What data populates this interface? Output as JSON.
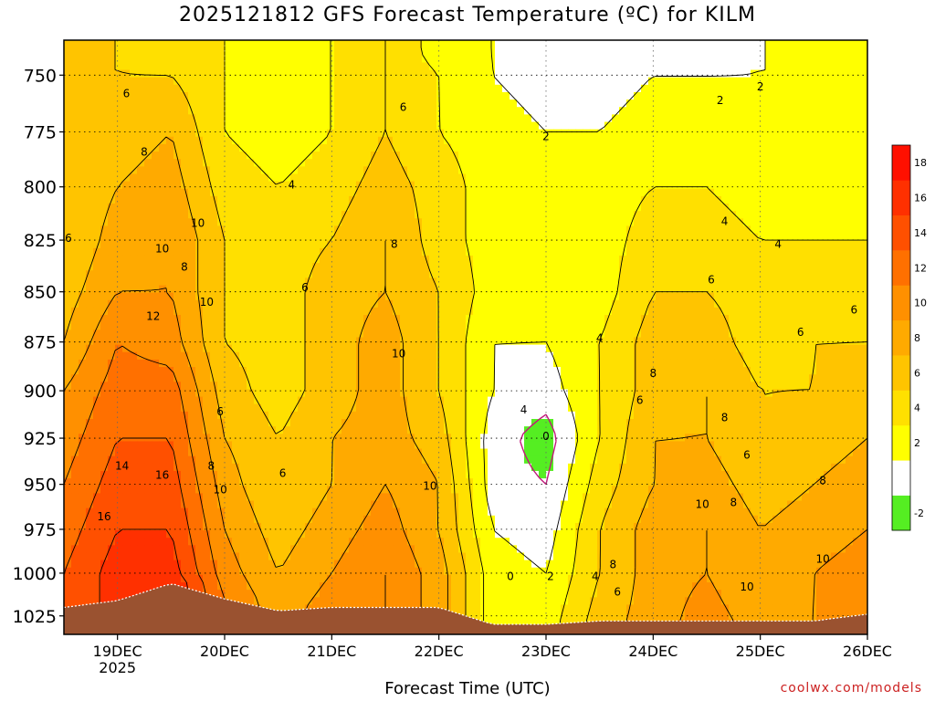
{
  "chart_data": {
    "type": "heatmap",
    "title": "2025121812 GFS Forecast Temperature (ºC) for KILM",
    "xlabel": "Forecast Time (UTC)",
    "credit": "coolwx.com/models",
    "y_axis": {
      "label": "",
      "scale": "log",
      "range": [
        735,
        1036
      ],
      "ticks": [
        750,
        775,
        800,
        825,
        850,
        875,
        900,
        925,
        950,
        975,
        1000,
        1025
      ]
    },
    "x_axis": {
      "range": [
        "2025-12-18T12:00Z",
        "2025-12-26T00:00Z"
      ],
      "ticks": [
        {
          "label": "19DEC",
          "sub": "2025",
          "time": "2025-12-19T00:00Z"
        },
        {
          "label": "20DEC",
          "sub": "",
          "time": "2025-12-20T00:00Z"
        },
        {
          "label": "21DEC",
          "sub": "",
          "time": "2025-12-21T00:00Z"
        },
        {
          "label": "22DEC",
          "sub": "",
          "time": "2025-12-22T00:00Z"
        },
        {
          "label": "23DEC",
          "sub": "",
          "time": "2025-12-23T00:00Z"
        },
        {
          "label": "24DEC",
          "sub": "",
          "time": "2025-12-24T00:00Z"
        },
        {
          "label": "25DEC",
          "sub": "",
          "time": "2025-12-25T00:00Z"
        },
        {
          "label": "26DEC",
          "sub": "",
          "time": "2025-12-26T00:00Z"
        }
      ]
    },
    "grid": true,
    "colorbar": {
      "placement": "right",
      "levels": [
        -2,
        0,
        2,
        4,
        6,
        8,
        10,
        12,
        14,
        16,
        18,
        20
      ],
      "tick_labels": [
        "-2",
        "2",
        "4",
        "6",
        "8",
        "10",
        "12",
        "14",
        "16",
        "18"
      ],
      "colors": [
        "#55ee22",
        "#ffffff",
        "#ffff00",
        "#ffe000",
        "#ffc400",
        "#ffaa00",
        "#ff9000",
        "#ff7000",
        "#ff5000",
        "#ff3000",
        "#ff1000"
      ]
    },
    "terrain_color": "#9a5230",
    "temperature_profiles": [
      {
        "time": "2025-12-18T12:00Z",
        "pressure": [
          1020,
          1000,
          975,
          950,
          925,
          900,
          875,
          850,
          825,
          800,
          775,
          750,
          740
        ],
        "temp": [
          14,
          14,
          13,
          12,
          11,
          10,
          8,
          7,
          6,
          6,
          6,
          6,
          6
        ]
      },
      {
        "time": "2025-12-19T00:00Z",
        "pressure": [
          1016,
          1000,
          975,
          950,
          925,
          900,
          875,
          850,
          825,
          800,
          775,
          750,
          740
        ],
        "temp": [
          17,
          17,
          16,
          15,
          14,
          13,
          12,
          10,
          9,
          8,
          7,
          6,
          6
        ]
      },
      {
        "time": "2025-12-19T12:00Z",
        "pressure": [
          1006,
          1000,
          975,
          950,
          925,
          900,
          875,
          850,
          825,
          800,
          775,
          750,
          740
        ],
        "temp": [
          18,
          17,
          16,
          15,
          14,
          13,
          11,
          10,
          10,
          9,
          8,
          6,
          5
        ]
      },
      {
        "time": "2025-12-20T00:00Z",
        "pressure": [
          1015,
          1000,
          975,
          950,
          925,
          900,
          875,
          850,
          825,
          800,
          775,
          750,
          740
        ],
        "temp": [
          12,
          11,
          10,
          9,
          8,
          7,
          6,
          6,
          6,
          5,
          4,
          4,
          4
        ]
      },
      {
        "time": "2025-12-20T12:00Z",
        "pressure": [
          1022,
          1000,
          975,
          950,
          925,
          900,
          875,
          850,
          825,
          800,
          775,
          750,
          740
        ],
        "temp": [
          9,
          8,
          7,
          6,
          6,
          5,
          5,
          5,
          5,
          4,
          3,
          3,
          3
        ]
      },
      {
        "time": "2025-12-21T00:00Z",
        "pressure": [
          1020,
          1000,
          975,
          950,
          925,
          900,
          875,
          850,
          825,
          800,
          775,
          750,
          740
        ],
        "temp": [
          11,
          10,
          9,
          8,
          8,
          7,
          7,
          7,
          6,
          5,
          4,
          4,
          4
        ]
      },
      {
        "time": "2025-12-21T12:00Z",
        "pressure": [
          1020,
          1000,
          975,
          950,
          925,
          900,
          875,
          850,
          825,
          800,
          775,
          750,
          740
        ],
        "temp": [
          12,
          12,
          11,
          10,
          9,
          9,
          9,
          8,
          8,
          7,
          6,
          6,
          6
        ]
      },
      {
        "time": "2025-12-22T00:00Z",
        "pressure": [
          1020,
          1000,
          975,
          950,
          925,
          900,
          875,
          850,
          825,
          800,
          775,
          750,
          740
        ],
        "temp": [
          9,
          9,
          8,
          8,
          7,
          6,
          6,
          6,
          5,
          5,
          4,
          4,
          3
        ]
      },
      {
        "time": "2025-12-22T12:00Z",
        "pressure": [
          1030,
          1000,
          975,
          950,
          925,
          900,
          875,
          850,
          825,
          800,
          775,
          750,
          740
        ],
        "temp": [
          3,
          3,
          2,
          1,
          1,
          2,
          2,
          3,
          3,
          3,
          3,
          2,
          2
        ]
      },
      {
        "time": "2025-12-23T00:00Z",
        "pressure": [
          1030,
          1000,
          975,
          950,
          925,
          900,
          875,
          850,
          825,
          800,
          775,
          750,
          740
        ],
        "temp": [
          3,
          2,
          1,
          0,
          -1,
          1,
          2,
          3,
          3,
          3,
          2,
          1,
          0
        ]
      },
      {
        "time": "2025-12-23T12:00Z",
        "pressure": [
          1028,
          1000,
          975,
          950,
          925,
          900,
          875,
          850,
          825,
          800,
          775,
          750,
          740
        ],
        "temp": [
          7,
          6,
          6,
          5,
          4,
          4,
          4,
          3,
          3,
          3,
          2,
          1,
          1
        ]
      },
      {
        "time": "2025-12-24T00:00Z",
        "pressure": [
          1028,
          1000,
          975,
          950,
          925,
          900,
          875,
          850,
          825,
          800,
          775,
          750,
          740
        ],
        "temp": [
          9,
          9,
          9,
          8,
          8,
          7,
          7,
          6,
          5,
          4,
          3,
          2,
          1
        ]
      },
      {
        "time": "2025-12-24T12:00Z",
        "pressure": [
          1028,
          1000,
          975,
          950,
          925,
          900,
          875,
          850,
          825,
          800,
          775,
          750,
          740
        ],
        "temp": [
          11,
          10,
          10,
          9,
          8,
          8,
          7,
          6,
          5,
          4,
          3,
          2,
          1
        ]
      },
      {
        "time": "2025-12-25T00:00Z",
        "pressure": [
          1028,
          1000,
          975,
          950,
          925,
          900,
          875,
          850,
          825,
          800,
          775,
          750,
          740
        ],
        "temp": [
          9,
          8,
          8,
          7,
          6,
          6,
          5,
          5,
          4,
          3,
          3,
          2,
          2
        ]
      },
      {
        "time": "2025-12-25T12:00Z",
        "pressure": [
          1028,
          1000,
          975,
          950,
          925,
          900,
          875,
          850,
          825,
          800,
          775,
          750,
          740
        ],
        "temp": [
          10,
          10,
          9,
          8,
          7,
          6,
          6,
          5,
          4,
          3,
          3,
          2,
          2
        ]
      },
      {
        "time": "2025-12-26T00:00Z",
        "pressure": [
          1024,
          1000,
          975,
          950,
          925,
          900,
          875,
          850,
          825,
          800,
          775,
          750,
          740
        ],
        "temp": [
          12,
          11,
          10,
          9,
          8,
          7,
          6,
          5,
          4,
          3,
          3,
          3,
          3
        ]
      }
    ],
    "contour_labels": [
      {
        "text": "6",
        "time": "2025-12-19T02:00Z",
        "pressure": 758
      },
      {
        "text": "8",
        "time": "2025-12-19T06:00Z",
        "pressure": 784
      },
      {
        "text": "10",
        "time": "2025-12-19T10:00Z",
        "pressure": 829
      },
      {
        "text": "12",
        "time": "2025-12-19T08:00Z",
        "pressure": 862
      },
      {
        "text": "14",
        "time": "2025-12-19T01:00Z",
        "pressure": 940
      },
      {
        "text": "16",
        "time": "2025-12-19T10:00Z",
        "pressure": 945
      },
      {
        "text": "16",
        "time": "2025-12-18T21:00Z",
        "pressure": 968
      },
      {
        "text": "6",
        "time": "2025-12-18T13:00Z",
        "pressure": 824
      },
      {
        "text": "10",
        "time": "2025-12-19T18:00Z",
        "pressure": 817
      },
      {
        "text": "8",
        "time": "2025-12-19T15:00Z",
        "pressure": 838
      },
      {
        "text": "10",
        "time": "2025-12-19T20:00Z",
        "pressure": 855
      },
      {
        "text": "6",
        "time": "2025-12-19T23:00Z",
        "pressure": 911
      },
      {
        "text": "8",
        "time": "2025-12-19T21:00Z",
        "pressure": 940
      },
      {
        "text": "10",
        "time": "2025-12-19T23:00Z",
        "pressure": 953
      },
      {
        "text": "4",
        "time": "2025-12-20T15:00Z",
        "pressure": 799
      },
      {
        "text": "6",
        "time": "2025-12-20T13:00Z",
        "pressure": 944
      },
      {
        "text": "6",
        "time": "2025-12-20T18:00Z",
        "pressure": 848
      },
      {
        "text": "6",
        "time": "2025-12-21T16:00Z",
        "pressure": 764
      },
      {
        "text": "8",
        "time": "2025-12-21T14:00Z",
        "pressure": 827
      },
      {
        "text": "10",
        "time": "2025-12-21T15:00Z",
        "pressure": 881
      },
      {
        "text": "10",
        "time": "2025-12-21T22:00Z",
        "pressure": 951
      },
      {
        "text": "4",
        "time": "2025-12-22T19:00Z",
        "pressure": 910
      },
      {
        "text": "2",
        "time": "2025-12-23T00:00Z",
        "pressure": 777
      },
      {
        "text": "0",
        "time": "2025-12-23T00:00Z",
        "pressure": 924
      },
      {
        "text": "0",
        "time": "2025-12-22T16:00Z",
        "pressure": 1002
      },
      {
        "text": "2",
        "time": "2025-12-23T01:00Z",
        "pressure": 1002
      },
      {
        "text": "4",
        "time": "2025-12-23T12:00Z",
        "pressure": 873
      },
      {
        "text": "4",
        "time": "2025-12-23T11:00Z",
        "pressure": 1002
      },
      {
        "text": "8",
        "time": "2025-12-23T15:00Z",
        "pressure": 995
      },
      {
        "text": "6",
        "time": "2025-12-23T16:00Z",
        "pressure": 1011
      },
      {
        "text": "6",
        "time": "2025-12-23T21:00Z",
        "pressure": 905
      },
      {
        "text": "8",
        "time": "2025-12-24T00:00Z",
        "pressure": 891
      },
      {
        "text": "8",
        "time": "2025-12-24T16:00Z",
        "pressure": 914
      },
      {
        "text": "6",
        "time": "2025-12-24T13:00Z",
        "pressure": 844
      },
      {
        "text": "4",
        "time": "2025-12-24T16:00Z",
        "pressure": 816
      },
      {
        "text": "2",
        "time": "2025-12-24T15:00Z",
        "pressure": 761
      },
      {
        "text": "2",
        "time": "2025-12-25T00:00Z",
        "pressure": 755
      },
      {
        "text": "10",
        "time": "2025-12-24T11:00Z",
        "pressure": 961
      },
      {
        "text": "8",
        "time": "2025-12-24T18:00Z",
        "pressure": 960
      },
      {
        "text": "6",
        "time": "2025-12-24T21:00Z",
        "pressure": 934
      },
      {
        "text": "10",
        "time": "2025-12-24T21:00Z",
        "pressure": 1008
      },
      {
        "text": "4",
        "time": "2025-12-25T04:00Z",
        "pressure": 827
      },
      {
        "text": "6",
        "time": "2025-12-25T09:00Z",
        "pressure": 870
      },
      {
        "text": "6",
        "time": "2025-12-25T21:00Z",
        "pressure": 859
      },
      {
        "text": "8",
        "time": "2025-12-25T14:00Z",
        "pressure": 948
      },
      {
        "text": "10",
        "time": "2025-12-25T14:00Z",
        "pressure": 992
      }
    ]
  }
}
